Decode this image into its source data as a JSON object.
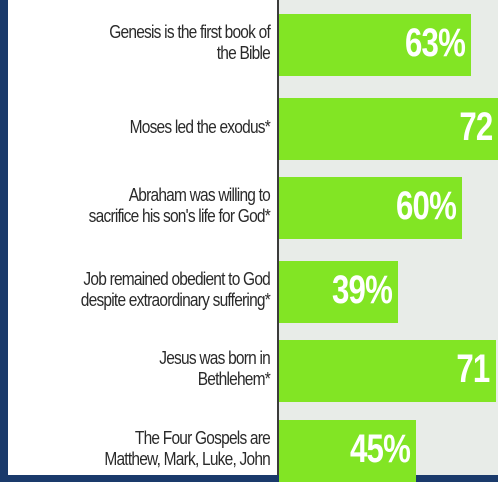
{
  "colors": {
    "bar": "#82e524",
    "value_text": "#ffffff",
    "label_text": "#2a2a2a",
    "frame": "#1a3a6b"
  },
  "chart_data": {
    "type": "bar",
    "orientation": "horizontal",
    "title": "",
    "xlabel": "",
    "ylabel": "",
    "xlim": [
      0,
      75
    ],
    "grid": false,
    "categories": [
      "Genesis is the first book of the Bible",
      "Moses led the exodus*",
      "Abraham was willing to sacrifice his son's life for God*",
      "Job remained obedient to God despite extraordinary suffering*",
      "Jesus was born in Bethlehem*",
      "The Four Gospels are Matthew, Mark, Luke, John"
    ],
    "label_lines": [
      [
        "Genesis is the first book of",
        "the Bible"
      ],
      [
        "Moses led the exodus*"
      ],
      [
        "Abraham was willing to",
        "sacrifice his son's life for God*"
      ],
      [
        "Job remained obedient to God",
        "despite extraordinary suffering*"
      ],
      [
        "Jesus was born in",
        "Bethlehem*"
      ],
      [
        "The Four Gospels are",
        "Matthew, Mark, Luke, John"
      ]
    ],
    "values": [
      63,
      72,
      60,
      39,
      71,
      45
    ],
    "value_labels": [
      "63%",
      "72",
      "60%",
      "39%",
      "71",
      "45%"
    ]
  }
}
